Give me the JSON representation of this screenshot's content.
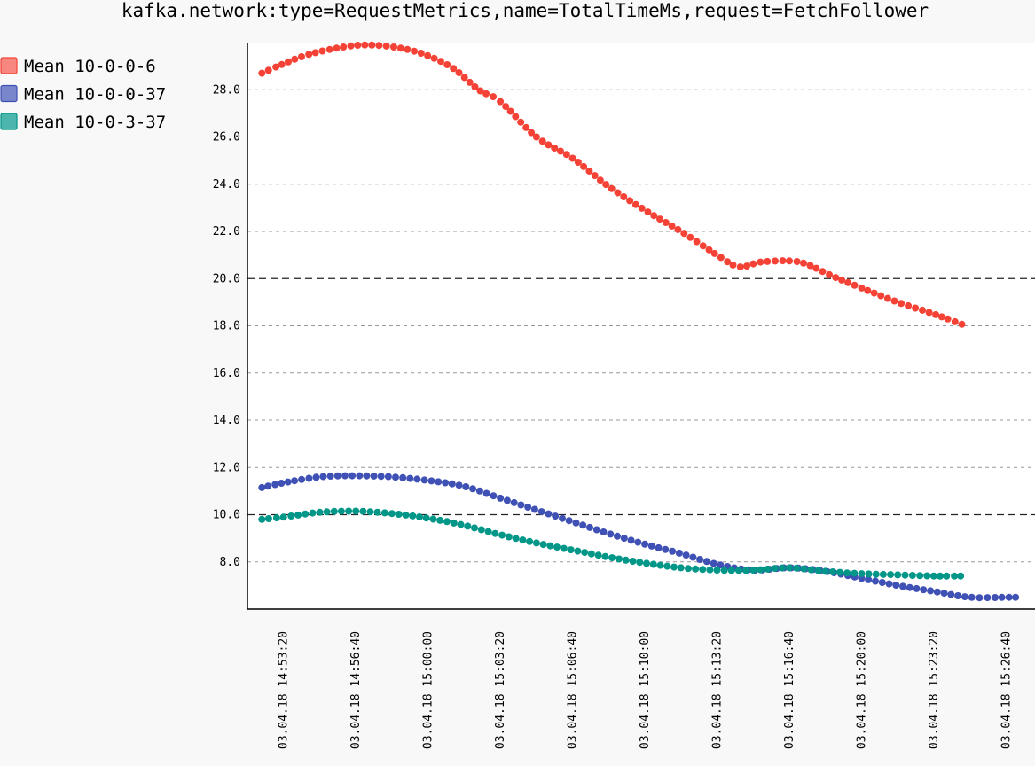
{
  "chart_data": {
    "type": "line",
    "title": "kafka.network:type=RequestMetrics,name=TotalTimeMs,request=FetchFollower",
    "xlabel": "",
    "ylabel": "",
    "ylim": [
      6.0,
      30.0
    ],
    "yticks": [
      "8.0",
      "10.0",
      "12.0",
      "14.0",
      "16.0",
      "18.0",
      "20.0",
      "22.0",
      "24.0",
      "26.0",
      "28.0"
    ],
    "major_y_gridlines": [
      "10.0",
      "20.0"
    ],
    "x_range": [
      "03.04.18 14:51:40",
      "03.04.18 15:28:00"
    ],
    "xticks": [
      "03.04.18 14:53:20",
      "03.04.18 14:56:40",
      "03.04.18 15:00:00",
      "03.04.18 15:03:20",
      "03.04.18 15:06:40",
      "03.04.18 15:10:00",
      "03.04.18 15:13:20",
      "03.04.18 15:16:40",
      "03.04.18 15:20:00",
      "03.04.18 15:23:20",
      "03.04.18 15:26:40"
    ],
    "grid": true,
    "legend_position": "top-left",
    "series": [
      {
        "name": "Mean 10-0-0-6",
        "color": "#f44336",
        "legend_fill": "#f8877f",
        "points": [
          [
            "03.04.18 14:52:20",
            28.7
          ],
          [
            "03.04.18 14:53:20",
            29.1
          ],
          [
            "03.04.18 14:54:30",
            29.5
          ],
          [
            "03.04.18 14:56:00",
            29.8
          ],
          [
            "03.04.18 14:57:10",
            29.9
          ],
          [
            "03.04.18 14:58:30",
            29.8
          ],
          [
            "03.04.18 14:59:50",
            29.5
          ],
          [
            "03.04.18 15:01:10",
            28.9
          ],
          [
            "03.04.18 15:02:20",
            28.0
          ],
          [
            "03.04.18 15:03:20",
            27.5
          ],
          [
            "03.04.18 15:05:00",
            26.0
          ],
          [
            "03.04.18 15:06:40",
            25.1
          ],
          [
            "03.04.18 15:08:20",
            23.9
          ],
          [
            "03.04.18 15:10:00",
            22.9
          ],
          [
            "03.04.18 15:11:40",
            22.0
          ],
          [
            "03.04.18 15:13:20",
            21.0
          ],
          [
            "03.04.18 15:14:20",
            20.5
          ],
          [
            "03.04.18 15:15:20",
            20.7
          ],
          [
            "03.04.18 15:16:40",
            20.75
          ],
          [
            "03.04.18 15:17:30",
            20.6
          ],
          [
            "03.04.18 15:18:40",
            20.1
          ],
          [
            "03.04.18 15:20:00",
            19.6
          ],
          [
            "03.04.18 15:21:40",
            19.0
          ],
          [
            "03.04.18 15:23:20",
            18.5
          ],
          [
            "03.04.18 15:24:40",
            18.05
          ]
        ]
      },
      {
        "name": "Mean 10-0-0-37",
        "color": "#3f51b5",
        "legend_fill": "#7986cb",
        "points": [
          [
            "03.04.18 14:52:20",
            11.15
          ],
          [
            "03.04.18 14:53:20",
            11.35
          ],
          [
            "03.04.18 14:55:00",
            11.6
          ],
          [
            "03.04.18 14:56:40",
            11.65
          ],
          [
            "03.04.18 14:58:20",
            11.6
          ],
          [
            "03.04.18 15:00:00",
            11.45
          ],
          [
            "03.04.18 15:01:40",
            11.2
          ],
          [
            "03.04.18 15:03:20",
            10.7
          ],
          [
            "03.04.18 15:05:00",
            10.2
          ],
          [
            "03.04.18 15:06:40",
            9.7
          ],
          [
            "03.04.18 15:08:20",
            9.2
          ],
          [
            "03.04.18 15:10:00",
            8.75
          ],
          [
            "03.04.18 15:11:40",
            8.35
          ],
          [
            "03.04.18 15:13:20",
            7.9
          ],
          [
            "03.04.18 15:15:00",
            7.65
          ],
          [
            "03.04.18 15:16:40",
            7.75
          ],
          [
            "03.04.18 15:18:20",
            7.6
          ],
          [
            "03.04.18 15:20:00",
            7.3
          ],
          [
            "03.04.18 15:21:40",
            7.0
          ],
          [
            "03.04.18 15:23:20",
            6.75
          ],
          [
            "03.04.18 15:25:00",
            6.5
          ],
          [
            "03.04.18 15:26:40",
            6.5
          ],
          [
            "03.04.18 15:27:20",
            6.5
          ]
        ]
      },
      {
        "name": "Mean 10-0-3-37",
        "color": "#009688",
        "legend_fill": "#4db6ac",
        "points": [
          [
            "03.04.18 14:52:20",
            9.8
          ],
          [
            "03.04.18 14:53:20",
            9.9
          ],
          [
            "03.04.18 14:55:00",
            10.1
          ],
          [
            "03.04.18 14:56:40",
            10.15
          ],
          [
            "03.04.18 14:58:20",
            10.05
          ],
          [
            "03.04.18 15:00:00",
            9.85
          ],
          [
            "03.04.18 15:01:40",
            9.55
          ],
          [
            "03.04.18 15:03:20",
            9.15
          ],
          [
            "03.04.18 15:05:00",
            8.8
          ],
          [
            "03.04.18 15:06:40",
            8.5
          ],
          [
            "03.04.18 15:08:20",
            8.2
          ],
          [
            "03.04.18 15:10:00",
            7.95
          ],
          [
            "03.04.18 15:11:40",
            7.75
          ],
          [
            "03.04.18 15:13:20",
            7.65
          ],
          [
            "03.04.18 15:15:00",
            7.65
          ],
          [
            "03.04.18 15:16:40",
            7.75
          ],
          [
            "03.04.18 15:18:20",
            7.6
          ],
          [
            "03.04.18 15:20:00",
            7.5
          ],
          [
            "03.04.18 15:21:40",
            7.45
          ],
          [
            "03.04.18 15:23:20",
            7.4
          ],
          [
            "03.04.18 15:24:40",
            7.4
          ]
        ]
      }
    ]
  }
}
